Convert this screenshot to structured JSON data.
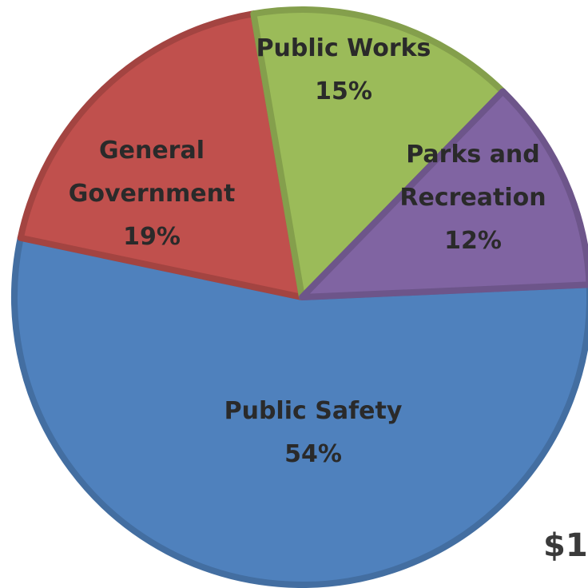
{
  "chart_data": {
    "type": "pie",
    "slices": [
      {
        "label_lines": [
          "Public Safety"
        ],
        "value": 54,
        "value_label": "54%",
        "color": "#4f81bd"
      },
      {
        "label_lines": [
          "General",
          "Government"
        ],
        "value": 19,
        "value_label": "19%",
        "color": "#c0504d"
      },
      {
        "label_lines": [
          "Public Works"
        ],
        "value": 15,
        "value_label": "15%",
        "color": "#9bbb59"
      },
      {
        "label_lines": [
          "Parks and",
          "Recreation"
        ],
        "value": 12,
        "value_label": "12%",
        "color": "#8064a2"
      }
    ]
  },
  "fragment_text": "$1"
}
